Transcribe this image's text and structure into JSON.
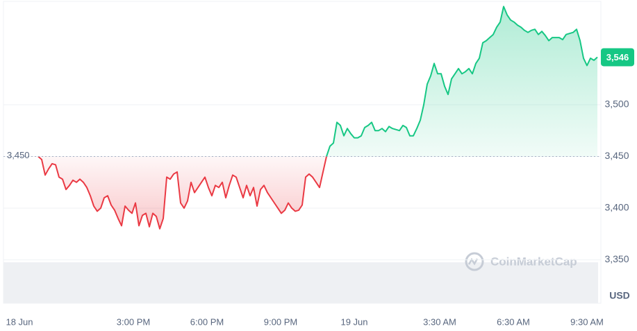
{
  "chart_data": {
    "type": "line",
    "xtick_labels": [
      "18 Jun",
      "3:00 PM",
      "6:00 PM",
      "9:00 PM",
      "19 Jun",
      "3:30 AM",
      "6:30 AM",
      "9:30 AM"
    ],
    "values": [
      3450,
      3447,
      3432,
      3438,
      3443,
      3442,
      3430,
      3428,
      3418,
      3422,
      3427,
      3425,
      3428,
      3425,
      3420,
      3412,
      3402,
      3397,
      3400,
      3410,
      3412,
      3403,
      3398,
      3390,
      3383,
      3402,
      3398,
      3395,
      3405,
      3383,
      3393,
      3395,
      3382,
      3395,
      3392,
      3380,
      3390,
      3430,
      3428,
      3433,
      3435,
      3405,
      3400,
      3407,
      3425,
      3415,
      3420,
      3425,
      3430,
      3420,
      3412,
      3422,
      3420,
      3425,
      3410,
      3422,
      3432,
      3430,
      3420,
      3410,
      3422,
      3412,
      3420,
      3402,
      3418,
      3422,
      3415,
      3410,
      3405,
      3400,
      3395,
      3398,
      3405,
      3400,
      3397,
      3398,
      3403,
      3430,
      3433,
      3430,
      3425,
      3420,
      3435,
      3450,
      3460,
      3463,
      3483,
      3480,
      3470,
      3477,
      3472,
      3468,
      3468,
      3470,
      3478,
      3480,
      3483,
      3475,
      3475,
      3477,
      3474,
      3479,
      3477,
      3476,
      3475,
      3480,
      3478,
      3470,
      3470,
      3477,
      3485,
      3500,
      3520,
      3528,
      3540,
      3530,
      3530,
      3518,
      3510,
      3525,
      3530,
      3535,
      3530,
      3532,
      3535,
      3530,
      3540,
      3545,
      3560,
      3562,
      3565,
      3568,
      3575,
      3580,
      3595,
      3587,
      3582,
      3580,
      3577,
      3575,
      3572,
      3570,
      3572,
      3573,
      3568,
      3571,
      3567,
      3562,
      3565,
      3565,
      3565,
      3563,
      3568,
      3569,
      3570,
      3573,
      3562,
      3545,
      3538,
      3545,
      3543,
      3546
    ],
    "up_color": "#16c784",
    "down_color": "#ea3943",
    "baseline": {
      "value": 3450,
      "label": "3,450"
    },
    "current_price": {
      "value": 3546,
      "label": "3,546"
    },
    "ylim": [
      3308,
      3600
    ],
    "yticks": [
      {
        "value": 3350,
        "label": "3,350"
      },
      {
        "value": 3400,
        "label": "3,400"
      },
      {
        "value": 3450,
        "label": "3,450"
      },
      {
        "value": 3500,
        "label": "3,500"
      }
    ],
    "grid": true,
    "currency": "USD",
    "watermark": "CoinMarketCap"
  }
}
